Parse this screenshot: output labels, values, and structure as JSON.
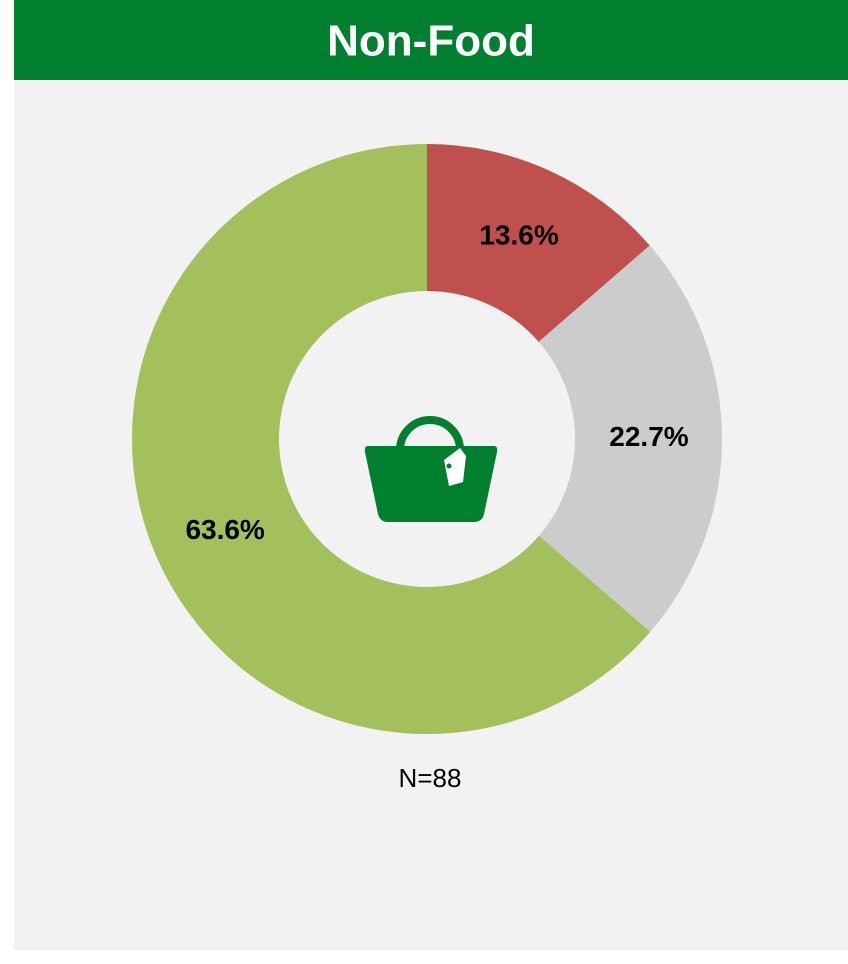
{
  "chart_data": {
    "type": "donut",
    "title": "Non-Food",
    "values": [
      13.6,
      22.7,
      63.6
    ],
    "value_labels": [
      "13.6%",
      "22.7%",
      "63.6%"
    ],
    "colors": [
      "#c0504d",
      "#cccccc",
      "#a3c05c"
    ],
    "annotation": "N=88"
  }
}
